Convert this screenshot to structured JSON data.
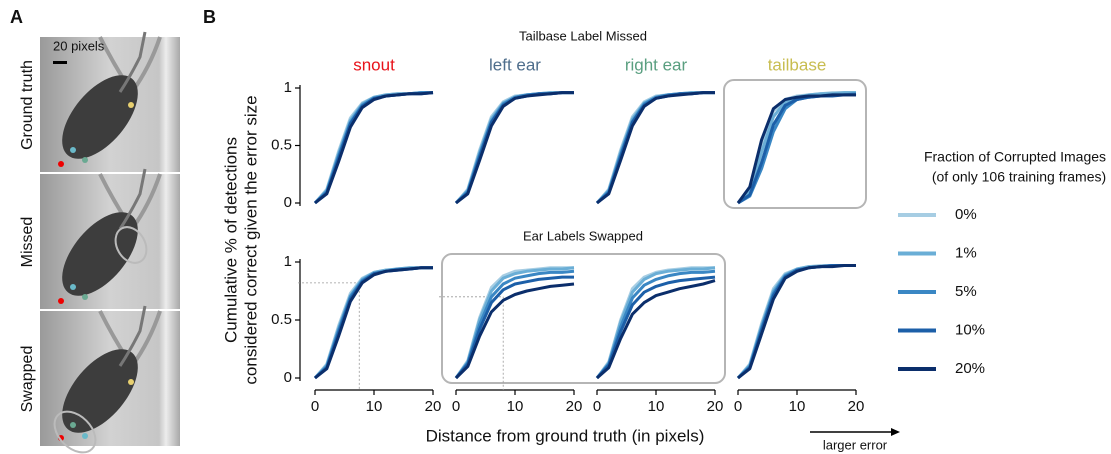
{
  "panel_a": {
    "label": "A",
    "scale_bar": "20 pixels",
    "rows": [
      "Ground truth",
      "Missed",
      "Swapped"
    ]
  },
  "panel_b": {
    "label": "B",
    "row_titles": [
      "Tailbase Label Missed",
      "Ear Labels Swapped"
    ],
    "y_label": [
      "Cumulative % of detections",
      "considered correct given the error size"
    ],
    "x_label": "Distance from ground truth (in pixels)",
    "arrow_label": "larger error"
  },
  "legend": {
    "title": "Fraction of Corrupted Images",
    "subtitle": "(of only 106 training frames)",
    "names": [
      "0%",
      "1%",
      "5%",
      "10%",
      "20%"
    ],
    "colors": [
      "#a6cde3",
      "#6aaed6",
      "#3a87c4",
      "#1c5fa8",
      "#0b2e6b"
    ]
  },
  "chart_data": [
    {
      "type": "line",
      "title": "snout",
      "title_color": "#e8121a",
      "x": [
        0,
        2,
        4,
        6,
        8,
        10,
        12,
        14,
        16,
        18,
        20
      ],
      "xlim": [
        0,
        20
      ],
      "ylim": [
        0,
        1
      ],
      "yticks": [
        0.0,
        0.5,
        1.0
      ],
      "series": [
        {
          "values": [
            0,
            0.12,
            0.45,
            0.74,
            0.87,
            0.92,
            0.94,
            0.95,
            0.95,
            0.96,
            0.96
          ]
        },
        {
          "values": [
            0,
            0.11,
            0.43,
            0.72,
            0.86,
            0.92,
            0.94,
            0.95,
            0.95,
            0.96,
            0.96
          ]
        },
        {
          "values": [
            0,
            0.1,
            0.41,
            0.7,
            0.85,
            0.91,
            0.93,
            0.94,
            0.95,
            0.96,
            0.96
          ]
        },
        {
          "values": [
            0,
            0.09,
            0.39,
            0.69,
            0.84,
            0.91,
            0.93,
            0.94,
            0.95,
            0.95,
            0.96
          ]
        },
        {
          "values": [
            0,
            0.08,
            0.36,
            0.66,
            0.83,
            0.9,
            0.93,
            0.94,
            0.95,
            0.95,
            0.96
          ]
        }
      ]
    },
    {
      "type": "line",
      "title": "left ear",
      "title_color": "#4f6e8c",
      "x": [
        0,
        2,
        4,
        6,
        8,
        10,
        12,
        14,
        16,
        18,
        20
      ],
      "xlim": [
        0,
        20
      ],
      "ylim": [
        0,
        1
      ],
      "series": [
        {
          "values": [
            0,
            0.12,
            0.46,
            0.75,
            0.88,
            0.93,
            0.94,
            0.95,
            0.96,
            0.96,
            0.96
          ]
        },
        {
          "values": [
            0,
            0.11,
            0.44,
            0.73,
            0.87,
            0.92,
            0.94,
            0.95,
            0.96,
            0.96,
            0.96
          ]
        },
        {
          "values": [
            0,
            0.1,
            0.42,
            0.71,
            0.86,
            0.92,
            0.94,
            0.95,
            0.95,
            0.96,
            0.96
          ]
        },
        {
          "values": [
            0,
            0.09,
            0.4,
            0.7,
            0.85,
            0.91,
            0.93,
            0.95,
            0.95,
            0.96,
            0.96
          ]
        },
        {
          "values": [
            0,
            0.08,
            0.37,
            0.67,
            0.84,
            0.91,
            0.93,
            0.94,
            0.95,
            0.96,
            0.96
          ]
        }
      ]
    },
    {
      "type": "line",
      "title": "right ear",
      "title_color": "#5a9f80",
      "x": [
        0,
        2,
        4,
        6,
        8,
        10,
        12,
        14,
        16,
        18,
        20
      ],
      "xlim": [
        0,
        20
      ],
      "ylim": [
        0,
        1
      ],
      "series": [
        {
          "values": [
            0,
            0.12,
            0.46,
            0.75,
            0.88,
            0.93,
            0.94,
            0.95,
            0.96,
            0.96,
            0.96
          ]
        },
        {
          "values": [
            0,
            0.11,
            0.44,
            0.73,
            0.87,
            0.92,
            0.94,
            0.95,
            0.96,
            0.96,
            0.96
          ]
        },
        {
          "values": [
            0,
            0.1,
            0.42,
            0.71,
            0.86,
            0.92,
            0.94,
            0.95,
            0.95,
            0.96,
            0.96
          ]
        },
        {
          "values": [
            0,
            0.09,
            0.4,
            0.7,
            0.85,
            0.91,
            0.93,
            0.95,
            0.95,
            0.96,
            0.96
          ]
        },
        {
          "values": [
            0,
            0.08,
            0.37,
            0.67,
            0.84,
            0.91,
            0.93,
            0.94,
            0.95,
            0.96,
            0.96
          ]
        }
      ]
    },
    {
      "type": "line",
      "title": "tailbase",
      "title_color": "#c8bd50",
      "highlight": true,
      "x": [
        0,
        2,
        4,
        6,
        8,
        10,
        12,
        14,
        16,
        18,
        20
      ],
      "xlim": [
        0,
        20
      ],
      "ylim": [
        0,
        1
      ],
      "series": [
        {
          "values": [
            0,
            0.12,
            0.5,
            0.8,
            0.9,
            0.93,
            0.94,
            0.95,
            0.96,
            0.96,
            0.96
          ]
        },
        {
          "values": [
            0,
            0.1,
            0.44,
            0.75,
            0.88,
            0.92,
            0.94,
            0.95,
            0.95,
            0.96,
            0.96
          ]
        },
        {
          "values": [
            0,
            0.06,
            0.3,
            0.62,
            0.82,
            0.9,
            0.92,
            0.93,
            0.94,
            0.94,
            0.95
          ]
        },
        {
          "values": [
            0,
            0.07,
            0.35,
            0.68,
            0.85,
            0.9,
            0.92,
            0.93,
            0.93,
            0.94,
            0.94
          ]
        },
        {
          "values": [
            0,
            0.14,
            0.55,
            0.82,
            0.9,
            0.92,
            0.93,
            0.93,
            0.94,
            0.94,
            0.94
          ]
        }
      ]
    },
    {
      "type": "line",
      "x": [
        0,
        2,
        4,
        6,
        8,
        10,
        12,
        14,
        16,
        18,
        20
      ],
      "xlim": [
        0,
        20
      ],
      "ylim": [
        0,
        1
      ],
      "yticks": [
        0.0,
        0.5,
        1.0
      ],
      "xticks": [
        0,
        10,
        20
      ],
      "reference": {
        "x": 7.5,
        "y": 0.82
      },
      "series": [
        {
          "values": [
            0,
            0.12,
            0.45,
            0.73,
            0.86,
            0.91,
            0.93,
            0.94,
            0.95,
            0.95,
            0.95
          ]
        },
        {
          "values": [
            0,
            0.11,
            0.43,
            0.71,
            0.85,
            0.91,
            0.93,
            0.94,
            0.95,
            0.95,
            0.95
          ]
        },
        {
          "values": [
            0,
            0.1,
            0.41,
            0.7,
            0.84,
            0.9,
            0.92,
            0.94,
            0.94,
            0.95,
            0.95
          ]
        },
        {
          "values": [
            0,
            0.09,
            0.39,
            0.68,
            0.83,
            0.9,
            0.92,
            0.93,
            0.94,
            0.95,
            0.95
          ]
        },
        {
          "values": [
            0,
            0.08,
            0.36,
            0.66,
            0.82,
            0.89,
            0.92,
            0.93,
            0.94,
            0.95,
            0.95
          ]
        }
      ]
    },
    {
      "type": "line",
      "highlight": true,
      "x": [
        0,
        2,
        4,
        6,
        8,
        10,
        12,
        14,
        16,
        18,
        20
      ],
      "xlim": [
        0,
        20
      ],
      "ylim": [
        0,
        1
      ],
      "xticks": [
        0,
        10,
        20
      ],
      "reference": {
        "x": 8,
        "y": 0.7
      },
      "series": [
        {
          "values": [
            0,
            0.15,
            0.52,
            0.78,
            0.88,
            0.92,
            0.93,
            0.94,
            0.95,
            0.95,
            0.95
          ]
        },
        {
          "values": [
            0,
            0.14,
            0.5,
            0.75,
            0.86,
            0.9,
            0.92,
            0.93,
            0.94,
            0.94,
            0.95
          ]
        },
        {
          "values": [
            0,
            0.13,
            0.46,
            0.7,
            0.81,
            0.86,
            0.88,
            0.9,
            0.91,
            0.91,
            0.92
          ]
        },
        {
          "values": [
            0,
            0.12,
            0.42,
            0.65,
            0.76,
            0.81,
            0.83,
            0.85,
            0.86,
            0.87,
            0.87
          ]
        },
        {
          "values": [
            0,
            0.1,
            0.36,
            0.57,
            0.67,
            0.72,
            0.75,
            0.77,
            0.79,
            0.8,
            0.81
          ]
        }
      ]
    },
    {
      "type": "line",
      "highlight": true,
      "x": [
        0,
        2,
        4,
        6,
        8,
        10,
        12,
        14,
        16,
        18,
        20
      ],
      "xlim": [
        0,
        20
      ],
      "ylim": [
        0,
        1
      ],
      "xticks": [
        0,
        10,
        20
      ],
      "series": [
        {
          "values": [
            0,
            0.14,
            0.5,
            0.77,
            0.87,
            0.91,
            0.93,
            0.94,
            0.95,
            0.95,
            0.95
          ]
        },
        {
          "values": [
            0,
            0.13,
            0.48,
            0.74,
            0.85,
            0.9,
            0.92,
            0.93,
            0.94,
            0.94,
            0.95
          ]
        },
        {
          "values": [
            0,
            0.12,
            0.44,
            0.69,
            0.8,
            0.85,
            0.88,
            0.9,
            0.91,
            0.91,
            0.92
          ]
        },
        {
          "values": [
            0,
            0.11,
            0.4,
            0.63,
            0.74,
            0.79,
            0.82,
            0.84,
            0.85,
            0.86,
            0.87
          ]
        },
        {
          "values": [
            0,
            0.09,
            0.34,
            0.55,
            0.65,
            0.71,
            0.74,
            0.77,
            0.79,
            0.81,
            0.84
          ]
        }
      ]
    },
    {
      "type": "line",
      "x": [
        0,
        2,
        4,
        6,
        8,
        10,
        12,
        14,
        16,
        18,
        20
      ],
      "xlim": [
        0,
        20
      ],
      "ylim": [
        0,
        1
      ],
      "xticks": [
        0,
        10,
        20
      ],
      "series": [
        {
          "values": [
            0,
            0.12,
            0.47,
            0.77,
            0.9,
            0.94,
            0.96,
            0.97,
            0.97,
            0.97,
            0.97
          ]
        },
        {
          "values": [
            0,
            0.11,
            0.45,
            0.75,
            0.89,
            0.94,
            0.96,
            0.96,
            0.97,
            0.97,
            0.97
          ]
        },
        {
          "values": [
            0,
            0.1,
            0.43,
            0.73,
            0.88,
            0.93,
            0.95,
            0.96,
            0.97,
            0.97,
            0.97
          ]
        },
        {
          "values": [
            0,
            0.09,
            0.41,
            0.71,
            0.87,
            0.93,
            0.95,
            0.96,
            0.97,
            0.97,
            0.97
          ]
        },
        {
          "values": [
            0,
            0.08,
            0.38,
            0.68,
            0.86,
            0.92,
            0.95,
            0.96,
            0.96,
            0.97,
            0.97
          ]
        }
      ]
    }
  ]
}
